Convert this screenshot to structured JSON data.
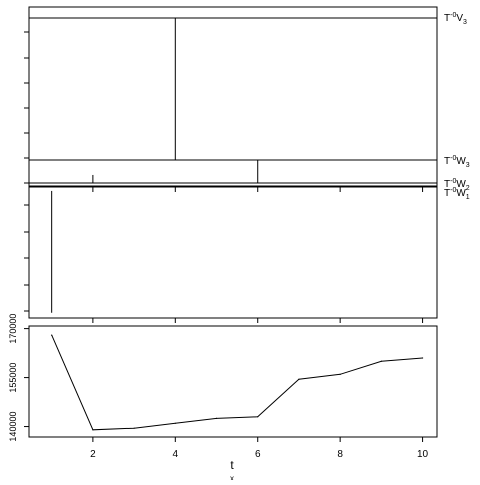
{
  "chart_data": {
    "type": "line",
    "x": [
      1,
      2,
      3,
      4,
      5,
      6,
      7,
      8,
      9,
      10
    ],
    "xlim": [
      0.45,
      10.35
    ],
    "xticks": [
      2,
      4,
      6,
      8,
      10
    ],
    "xlabel": "t",
    "xlabel_sub": "x",
    "levels": {
      "labels": [
        {
          "text": "T",
          "sup": "-0",
          "base": "V",
          "sub": "3"
        },
        {
          "text": "T",
          "sup": "-0",
          "base": "W",
          "sub": "3"
        },
        {
          "text": "T",
          "sup": "-0",
          "base": "W",
          "sub": "2"
        },
        {
          "text": "T",
          "sup": "-0",
          "base": "W",
          "sub": "1"
        }
      ]
    },
    "segments_top": [
      {
        "x": 4,
        "from": "V3",
        "to": "W3"
      },
      {
        "x": 6,
        "from": "W3",
        "to": "W2"
      },
      {
        "x": 2,
        "from": "W2",
        "to_frac": 0.35
      }
    ],
    "segment_middle": {
      "x": 1,
      "from_frac": 0.03,
      "to_frac": 0.96
    },
    "series": [
      {
        "values": [
          168000,
          139000,
          139500,
          141000,
          142500,
          143000,
          154500,
          156000,
          160000,
          161000
        ]
      }
    ],
    "ylim": [
      136800,
      170800
    ],
    "yticks": [
      140000,
      155000,
      170000
    ],
    "ytick_labels": [
      "140000",
      "155000",
      "170000"
    ]
  }
}
